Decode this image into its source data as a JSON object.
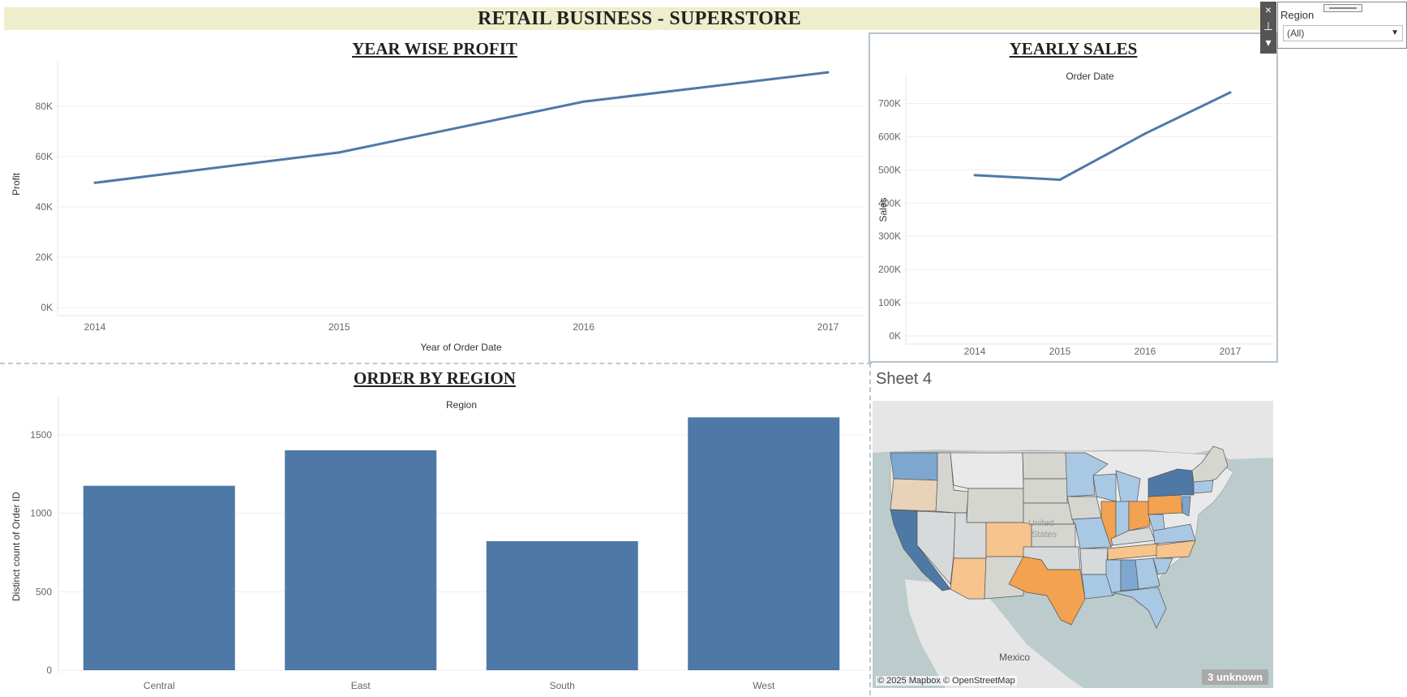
{
  "dashboard": {
    "title": "RETAIL BUSINESS - SUPERSTORE"
  },
  "profit_chart": {
    "title": "YEAR WISE PROFIT",
    "xlabel": "Year of Order Date",
    "ylabel": "Profit",
    "line_color": "#4e79a7"
  },
  "sales_chart": {
    "title": "YEARLY SALES",
    "header": "Order Date",
    "ylabel": "Sales",
    "line_color": "#4e79a7"
  },
  "region_chart": {
    "title": "ORDER BY REGION",
    "header": "Region",
    "ylabel": "Distinct count of Order ID",
    "bar_color": "#4e79a7"
  },
  "map_sheet": {
    "title": "Sheet 4",
    "attribution": "© 2025 Mapbox © OpenStreetMap",
    "unknown_badge": "3 unknown",
    "labels": {
      "country": "United States",
      "mexico": "Mexico"
    },
    "colors": {
      "water": "#bccbcb",
      "land": "#e9e9e9",
      "neutral": "#d6d6d0",
      "light_blue": "#a9c8e4",
      "mid_blue": "#7ea7d0",
      "dark_blue": "#4e79a7",
      "light_orange": "#f6c48c",
      "orange": "#f2a250",
      "tan": "#e8d3b8"
    }
  },
  "filter": {
    "label": "Region",
    "selected": "(All)"
  },
  "toolbar": {
    "close_icon": "×",
    "pin_icon": "⊥",
    "menu_icon": "▾"
  },
  "chart_data": [
    {
      "type": "line",
      "title": "YEAR WISE PROFIT",
      "xlabel": "Year of Order Date",
      "ylabel": "Profit",
      "x": [
        "2014",
        "2015",
        "2016",
        "2017"
      ],
      "y": [
        49544,
        61619,
        81795,
        93439
      ],
      "ylim": [
        0,
        98000
      ],
      "yticks": [
        0,
        20000,
        40000,
        60000,
        80000
      ],
      "ytick_labels": [
        "0K",
        "20K",
        "40K",
        "60K",
        "80K"
      ],
      "grid": true
    },
    {
      "type": "line",
      "title": "YEARLY SALES",
      "xlabel": "Order Date",
      "ylabel": "Sales",
      "x": [
        "2014",
        "2015",
        "2016",
        "2017"
      ],
      "y": [
        484247,
        470533,
        609206,
        733215
      ],
      "ylim": [
        0,
        760000
      ],
      "yticks": [
        0,
        100000,
        200000,
        300000,
        400000,
        500000,
        600000,
        700000
      ],
      "ytick_labels": [
        "0K",
        "100K",
        "200K",
        "300K",
        "400K",
        "500K",
        "600K",
        "700K"
      ],
      "grid": true
    },
    {
      "type": "bar",
      "title": "ORDER BY REGION",
      "xlabel": "Region",
      "ylabel": "Distinct count of Order ID",
      "categories": [
        "Central",
        "East",
        "South",
        "West"
      ],
      "values": [
        1175,
        1401,
        822,
        1611
      ],
      "ylim": [
        0,
        1680
      ],
      "yticks": [
        0,
        500,
        1000,
        1500
      ],
      "ytick_labels": [
        "0",
        "500",
        "1000",
        "1500"
      ],
      "grid": true
    }
  ]
}
